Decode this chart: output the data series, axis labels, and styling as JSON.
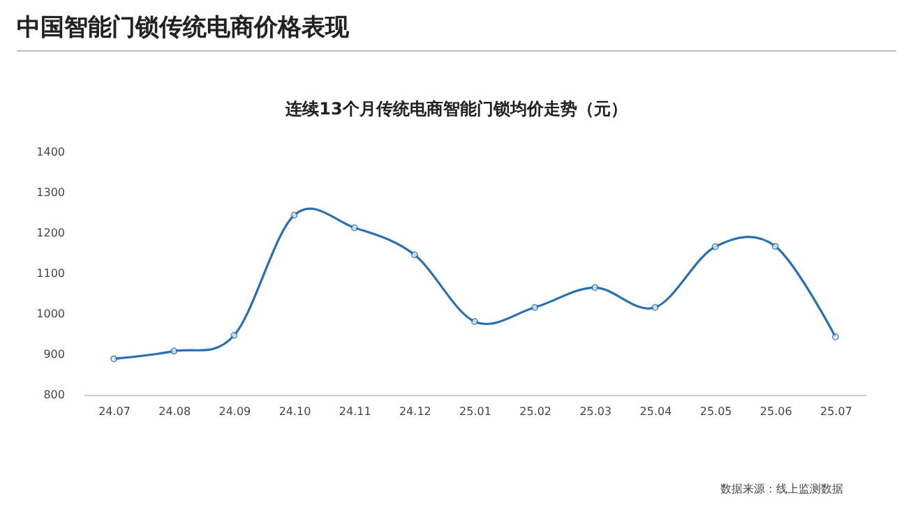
{
  "chart_data": {
    "type": "line",
    "title": "中国智能门锁传统电商价格表现",
    "subtitle": "连续13个月传统电商智能门锁均价走势（元）",
    "categories": [
      "24.07",
      "24.08",
      "24.09",
      "24.10",
      "24.11",
      "24.12",
      "25.01",
      "25.02",
      "25.03",
      "25.04",
      "25.05",
      "25.06",
      "25.07"
    ],
    "series": [
      {
        "color": "#2a6fb0",
        "values": [
          889,
          908,
          947,
          1244,
          1213,
          1146,
          981,
          1016,
          1065,
          1016,
          1166,
          1167,
          943
        ]
      }
    ],
    "ylim": [
      800,
      1400
    ],
    "yticks": [
      800,
      900,
      1000,
      1100,
      1200,
      1300,
      1400
    ],
    "grid": false,
    "marker": "circle",
    "line_style": "solid",
    "annotations": [
      "数据来源：线上监测数据"
    ]
  }
}
